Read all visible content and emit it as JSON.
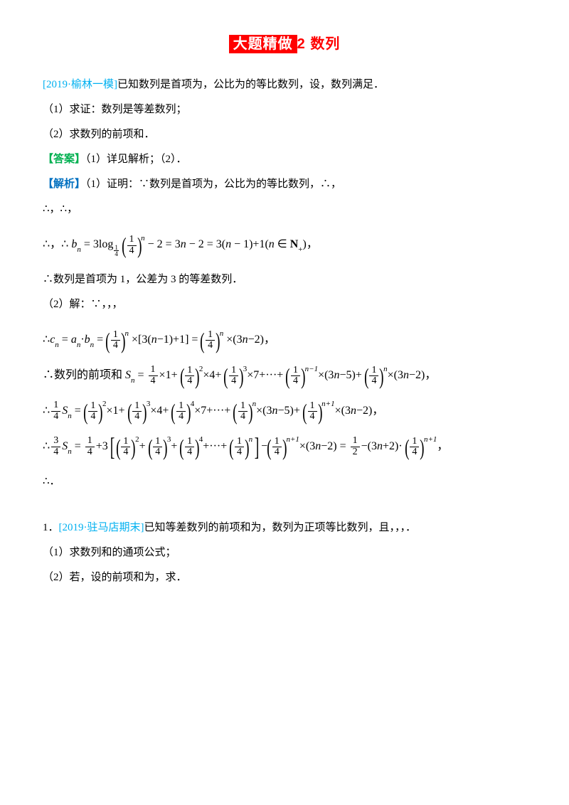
{
  "colors": {
    "title_bg": "#ff0000",
    "title_fg": "#ffffff",
    "plain_title": "#ff0000",
    "source": "#00b0f0",
    "answer": "#00b050",
    "analysis": "#0070c0",
    "body": "#000000",
    "bg": "#ffffff"
  },
  "typography": {
    "body_family": "SimSun",
    "body_size_pt": 11,
    "title_family": "Microsoft YaHei",
    "title_size_pt": 15,
    "math_family": "Times New Roman",
    "line_height": 2.2
  },
  "title": {
    "highlight": "大题精做",
    "rest": "2 数列"
  },
  "q1": {
    "source": "[2019·榆林一模]",
    "stem_after": "已知数列是首项为，公比为的等比数列，设，数列满足．",
    "part1": "（1）求证：数列是等差数列；",
    "part2": "（2）求数列的前项和．",
    "ans_label": "【答案】",
    "ans_text": "（1）详见解析；（2）．",
    "ana_label": "【解析】",
    "ana_text": "（1）证明：∵数列是首项为，公比为的等比数列，∴，",
    "line_a": "∴，∴，",
    "line_bn_pre": "∴，∴",
    "line_bn_post": "，",
    "line_conc": "∴数列是首项为 1，公差为 3 的等差数列．",
    "part2_head": "（2）解：∵，，，",
    "sn_label": "∴数列的前项和",
    "tail": "∴．"
  },
  "q2": {
    "num": "1．",
    "source": "[2019·驻马店期末]",
    "stem_after": "已知等差数列的前项和为，数列为正项等比数列，且，，，．",
    "part1": "（1）求数列和的通项公式；",
    "part2": "（2）若，设的前项和为，求．"
  }
}
